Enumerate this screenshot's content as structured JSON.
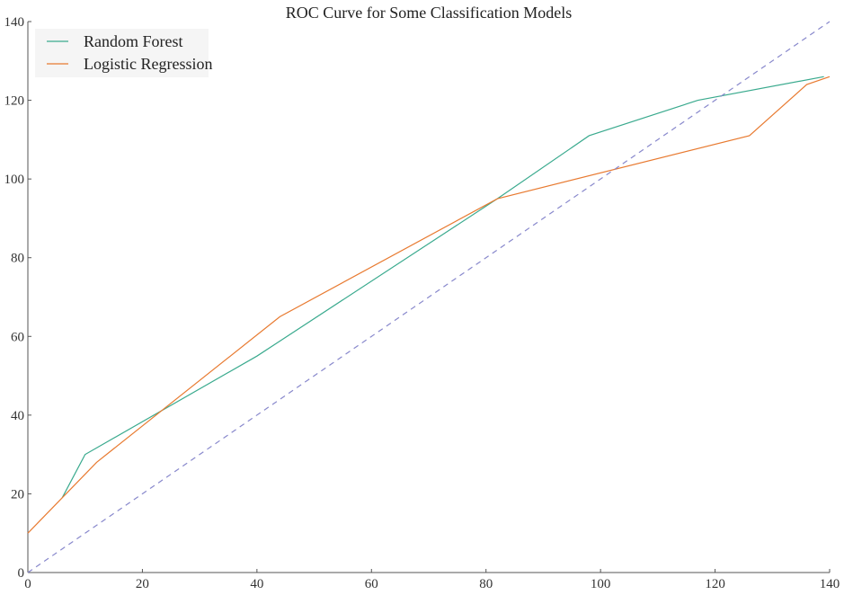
{
  "chart_data": {
    "type": "line",
    "title": "ROC Curve for Some Classification Models",
    "xlabel": "",
    "ylabel": "",
    "xlim": [
      0,
      140
    ],
    "ylim": [
      0,
      140
    ],
    "xticks": [
      0,
      20,
      40,
      60,
      80,
      100,
      120,
      140
    ],
    "yticks": [
      0,
      20,
      40,
      60,
      80,
      100,
      120,
      140
    ],
    "grid": false,
    "legend_position": "top-left",
    "series": [
      {
        "name": "Random Forest",
        "color": "#3aaa8e",
        "style": "solid",
        "x": [
          6,
          10,
          40,
          82,
          98,
          117,
          139
        ],
        "y": [
          19,
          30,
          55,
          95,
          111,
          120,
          126
        ]
      },
      {
        "name": "Logistic Regression",
        "color": "#e87a30",
        "style": "solid",
        "x": [
          0,
          2,
          12,
          44,
          82,
          126,
          136,
          140
        ],
        "y": [
          10,
          13,
          28,
          65,
          95,
          111,
          124,
          126
        ]
      },
      {
        "name": "",
        "color": "#8888cc",
        "style": "dashed",
        "x": [
          0,
          140
        ],
        "y": [
          0,
          140
        ]
      }
    ]
  }
}
